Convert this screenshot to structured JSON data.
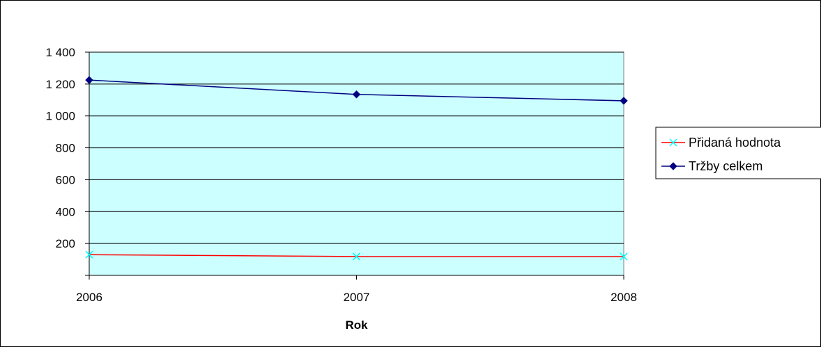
{
  "chart_data": {
    "type": "line",
    "categories": [
      "2006",
      "2007",
      "2008"
    ],
    "series": [
      {
        "name": "Přidaná hodnota",
        "values": [
          130,
          118,
          118
        ],
        "color": "#ff0000",
        "marker": "x",
        "marker_color": "#00ffff"
      },
      {
        "name": "Tržby celkem",
        "values": [
          1225,
          1135,
          1095
        ],
        "color": "#000080",
        "marker": "diamond",
        "marker_color": "#000080"
      }
    ],
    "xlabel": "Rok",
    "ylabel": "",
    "ylim": [
      0,
      1400
    ],
    "yticks": [
      200,
      400,
      600,
      800,
      1000,
      1200,
      1400
    ],
    "ytick_labels": [
      "200",
      "400",
      "600",
      "800",
      "1 000",
      "1 200",
      "1 400"
    ],
    "plot_background": "#ccffff",
    "grid": true,
    "legend_position": "right"
  }
}
